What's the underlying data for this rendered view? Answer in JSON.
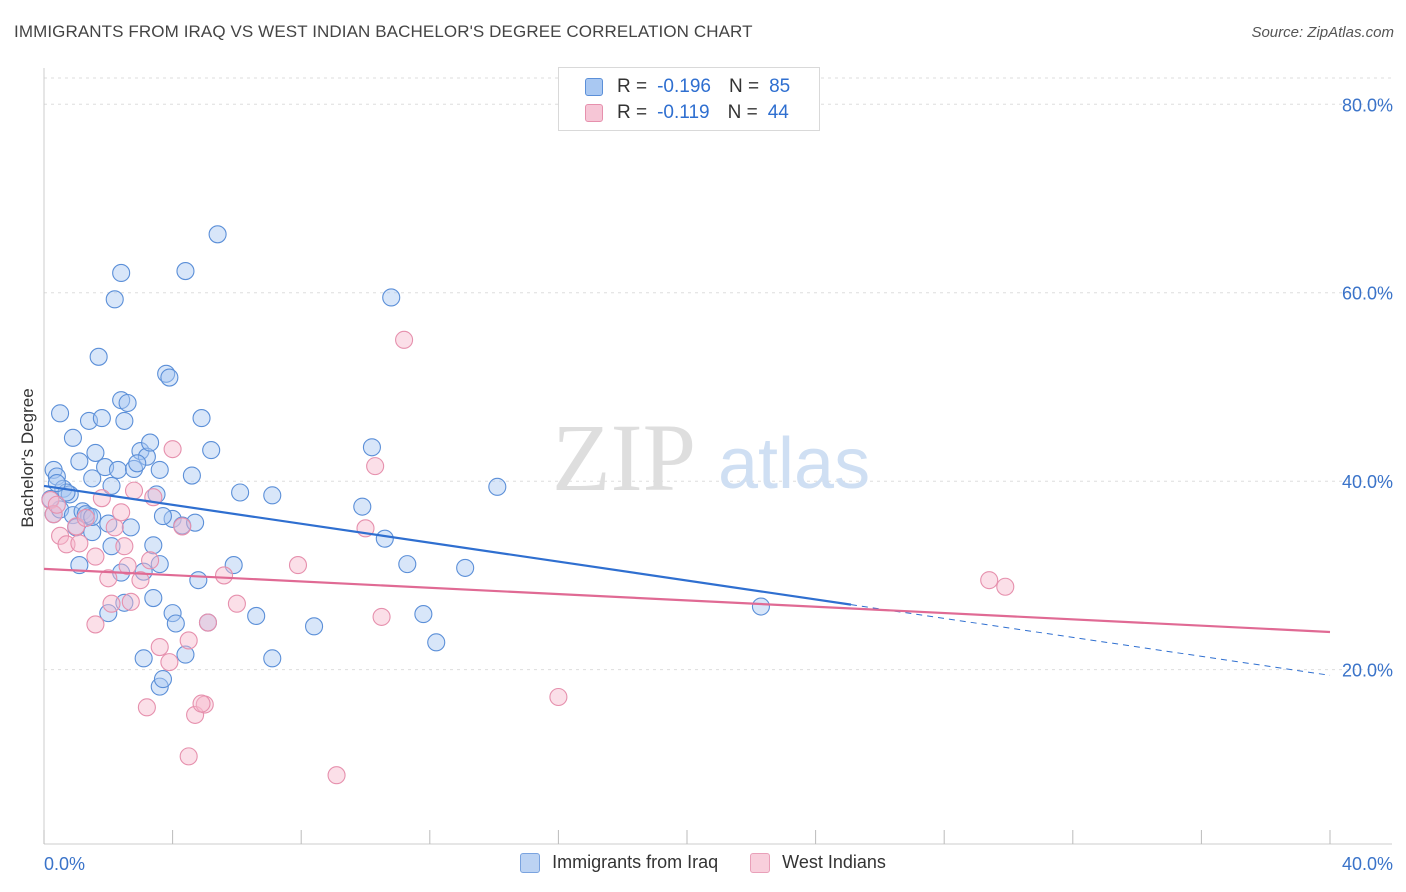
{
  "header": {
    "title": "IMMIGRANTS FROM IRAQ VS WEST INDIAN BACHELOR'S DEGREE CORRELATION CHART",
    "source": "Source: ZipAtlas.com"
  },
  "watermark": {
    "zip": "ZIP",
    "atlas": "atlas"
  },
  "legend": {
    "series1": {
      "r_label": "R =",
      "r_value": "-0.196",
      "n_label": "N =",
      "n_value": "85"
    },
    "series2": {
      "r_label": "R =",
      "r_value": "-0.119",
      "n_label": "N =",
      "n_value": "44"
    }
  },
  "colors": {
    "blue_fill": "#a9c8f2",
    "blue_stroke": "#5b8fd8",
    "blue_line": "#2f6fd0",
    "pink_fill": "#f6b7cb",
    "pink_stroke": "#e690ad",
    "pink_line": "#e06a94",
    "grid": "#dddddd",
    "axis_text": "#3a73c9"
  },
  "chart_data": {
    "type": "scatter",
    "title": "IMMIGRANTS FROM IRAQ VS WEST INDIAN BACHELOR'S DEGREE CORRELATION CHART",
    "xlabel": "",
    "ylabel": "Bachelor's Degree",
    "xlim": [
      0,
      40
    ],
    "ylim": [
      1.5,
      83
    ],
    "x_tick_labels": [
      "0.0%",
      "40.0%"
    ],
    "y_ticks": [
      20,
      40,
      60,
      80
    ],
    "y_tick_labels": [
      "20.0%",
      "40.0%",
      "60.0%",
      "80.0%"
    ],
    "grid": true,
    "legend_position": "top-center",
    "series": [
      {
        "name": "Immigrants from Iraq",
        "color": "#a9c8f2",
        "trend": {
          "x": [
            0,
            25.1
          ],
          "y": [
            39.5,
            26.9
          ],
          "dashed_to": [
            40,
            19.4
          ]
        },
        "points": [
          [
            0.3,
            41.2
          ],
          [
            0.4,
            40.5
          ],
          [
            0.6,
            39.2
          ],
          [
            0.3,
            36.5
          ],
          [
            0.5,
            37.0
          ],
          [
            0.8,
            38.6
          ],
          [
            0.9,
            36.4
          ],
          [
            1.0,
            35.1
          ],
          [
            1.2,
            36.8
          ],
          [
            1.4,
            36.3
          ],
          [
            0.5,
            47.2
          ],
          [
            0.9,
            44.6
          ],
          [
            1.1,
            42.1
          ],
          [
            1.4,
            46.4
          ],
          [
            1.5,
            40.3
          ],
          [
            1.6,
            43.0
          ],
          [
            1.8,
            46.7
          ],
          [
            1.9,
            41.5
          ],
          [
            2.1,
            39.5
          ],
          [
            2.3,
            41.2
          ],
          [
            2.2,
            59.3
          ],
          [
            2.4,
            48.6
          ],
          [
            2.5,
            46.4
          ],
          [
            2.6,
            48.3
          ],
          [
            2.8,
            41.3
          ],
          [
            3.0,
            43.2
          ],
          [
            3.2,
            42.6
          ],
          [
            3.3,
            44.1
          ],
          [
            3.5,
            38.6
          ],
          [
            3.6,
            41.2
          ],
          [
            1.7,
            53.2
          ],
          [
            2.4,
            62.1
          ],
          [
            3.8,
            51.4
          ],
          [
            3.9,
            51.0
          ],
          [
            4.4,
            62.3
          ],
          [
            5.4,
            66.2
          ],
          [
            4.9,
            46.7
          ],
          [
            5.2,
            43.3
          ],
          [
            4.6,
            40.6
          ],
          [
            4.0,
            36.0
          ],
          [
            4.3,
            35.3
          ],
          [
            4.7,
            35.6
          ],
          [
            3.4,
            33.2
          ],
          [
            2.7,
            35.1
          ],
          [
            2.0,
            35.5
          ],
          [
            1.5,
            34.6
          ],
          [
            1.1,
            31.1
          ],
          [
            2.1,
            33.1
          ],
          [
            2.4,
            30.3
          ],
          [
            3.1,
            30.4
          ],
          [
            3.6,
            31.2
          ],
          [
            4.8,
            29.5
          ],
          [
            5.9,
            31.1
          ],
          [
            2.5,
            27.1
          ],
          [
            3.4,
            27.6
          ],
          [
            2.0,
            26.0
          ],
          [
            4.0,
            26.0
          ],
          [
            4.1,
            24.9
          ],
          [
            5.1,
            25.0
          ],
          [
            6.6,
            25.7
          ],
          [
            3.1,
            21.2
          ],
          [
            4.4,
            21.6
          ],
          [
            7.1,
            21.2
          ],
          [
            3.6,
            18.2
          ],
          [
            3.7,
            19.0
          ],
          [
            8.4,
            24.6
          ],
          [
            7.1,
            38.5
          ],
          [
            9.9,
            37.3
          ],
          [
            10.2,
            43.6
          ],
          [
            10.6,
            33.9
          ],
          [
            11.3,
            31.2
          ],
          [
            10.8,
            59.5
          ],
          [
            11.8,
            25.9
          ],
          [
            12.2,
            22.9
          ],
          [
            13.1,
            30.8
          ],
          [
            14.1,
            39.4
          ],
          [
            22.3,
            26.7
          ],
          [
            0.2,
            38.1
          ],
          [
            0.7,
            38.8
          ],
          [
            1.3,
            36.5
          ],
          [
            1.5,
            36.2
          ],
          [
            0.4,
            39.8
          ],
          [
            2.9,
            41.9
          ],
          [
            6.1,
            38.8
          ],
          [
            3.7,
            36.3
          ]
        ]
      },
      {
        "name": "West Indians",
        "color": "#f6b7cb",
        "trend": {
          "x": [
            0,
            40
          ],
          "y": [
            30.7,
            24.0
          ]
        },
        "points": [
          [
            0.2,
            38.0
          ],
          [
            0.3,
            36.5
          ],
          [
            0.5,
            34.2
          ],
          [
            0.7,
            33.3
          ],
          [
            1.0,
            35.2
          ],
          [
            1.3,
            36.1
          ],
          [
            1.8,
            38.2
          ],
          [
            1.6,
            32.0
          ],
          [
            2.0,
            29.7
          ],
          [
            2.2,
            35.1
          ],
          [
            2.5,
            33.1
          ],
          [
            2.6,
            31.0
          ],
          [
            2.8,
            39.0
          ],
          [
            3.0,
            29.5
          ],
          [
            3.4,
            38.3
          ],
          [
            4.0,
            43.4
          ],
          [
            4.3,
            35.2
          ],
          [
            2.1,
            27.0
          ],
          [
            2.7,
            27.2
          ],
          [
            1.6,
            24.8
          ],
          [
            3.6,
            22.4
          ],
          [
            3.9,
            20.8
          ],
          [
            4.5,
            23.1
          ],
          [
            5.1,
            25.0
          ],
          [
            5.6,
            30.0
          ],
          [
            6.0,
            27.0
          ],
          [
            7.9,
            31.1
          ],
          [
            10.0,
            35.0
          ],
          [
            10.3,
            41.6
          ],
          [
            10.5,
            25.6
          ],
          [
            11.2,
            55.0
          ],
          [
            16.0,
            17.1
          ],
          [
            3.2,
            16.0
          ],
          [
            4.7,
            15.2
          ],
          [
            5.0,
            16.3
          ],
          [
            4.9,
            16.4
          ],
          [
            4.5,
            10.8
          ],
          [
            9.1,
            8.8
          ],
          [
            29.4,
            29.5
          ],
          [
            29.9,
            28.8
          ],
          [
            0.4,
            37.5
          ],
          [
            1.1,
            33.4
          ],
          [
            2.4,
            36.7
          ],
          [
            3.3,
            31.6
          ]
        ]
      }
    ]
  },
  "bottom_legend": {
    "item1": "Immigrants from Iraq",
    "item2": "West Indians"
  }
}
